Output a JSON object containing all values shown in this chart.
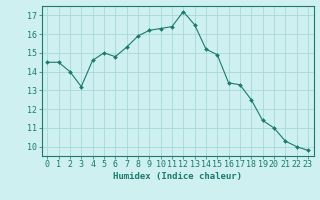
{
  "x": [
    0,
    1,
    2,
    3,
    4,
    5,
    6,
    7,
    8,
    9,
    10,
    11,
    12,
    13,
    14,
    15,
    16,
    17,
    18,
    19,
    20,
    21,
    22,
    23
  ],
  "y": [
    14.5,
    14.5,
    14.0,
    13.2,
    14.6,
    15.0,
    14.8,
    15.3,
    15.9,
    16.2,
    16.3,
    16.4,
    17.2,
    16.5,
    15.2,
    14.9,
    13.4,
    13.3,
    12.5,
    11.4,
    11.0,
    10.3,
    10.0,
    9.8
  ],
  "line_color": "#1a7a6e",
  "marker": "D",
  "marker_size": 2.0,
  "bg_color": "#cff0f0",
  "grid_color": "#a8d8d8",
  "xlabel": "Humidex (Indice chaleur)",
  "xlabel_fontsize": 6.5,
  "tick_fontsize": 6,
  "xlim": [
    -0.5,
    23.5
  ],
  "ylim": [
    9.5,
    17.5
  ],
  "yticks": [
    10,
    11,
    12,
    13,
    14,
    15,
    16,
    17
  ],
  "xticks": [
    0,
    1,
    2,
    3,
    4,
    5,
    6,
    7,
    8,
    9,
    10,
    11,
    12,
    13,
    14,
    15,
    16,
    17,
    18,
    19,
    20,
    21,
    22,
    23
  ]
}
